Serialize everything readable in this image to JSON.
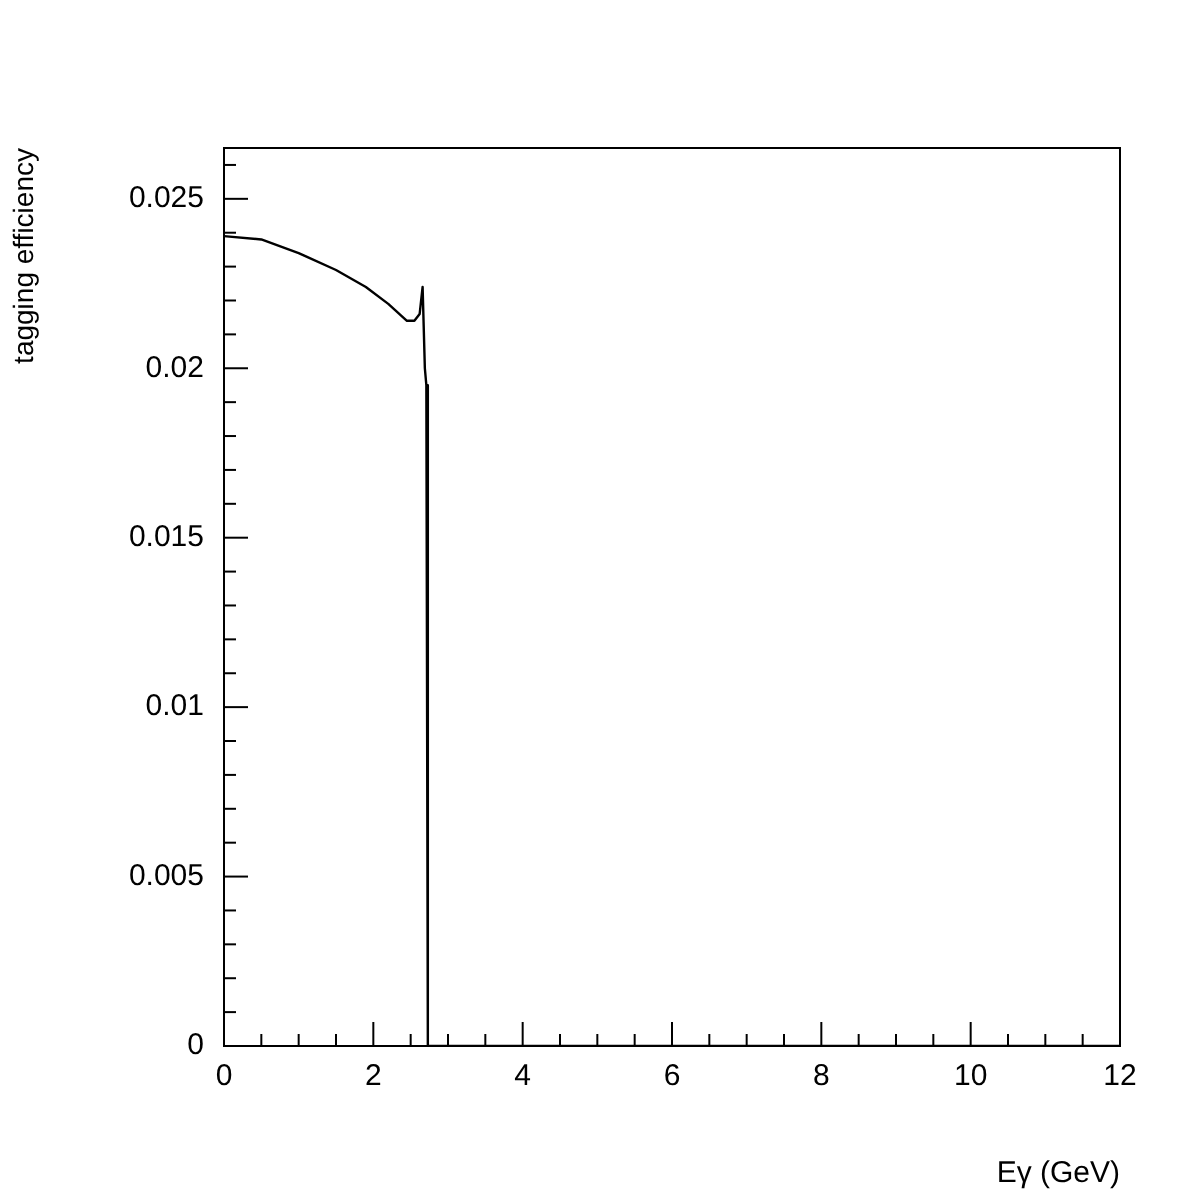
{
  "chart_data": {
    "type": "line",
    "xlabel": "Eγ (GeV)",
    "ylabel": "tagging efficiency",
    "x": [
      0,
      0.5,
      1.0,
      1.5,
      1.9,
      2.2,
      2.45,
      2.55,
      2.62,
      2.66,
      2.69,
      2.71,
      2.73,
      12
    ],
    "series": [
      {
        "color": "#000000",
        "values": [
          0.0239,
          0.0238,
          0.0234,
          0.0229,
          0.0224,
          0.0219,
          0.0214,
          0.0214,
          0.0216,
          0.0224,
          0.02,
          0.0195,
          0,
          0
        ]
      }
    ],
    "xlim": [
      0,
      12
    ],
    "ylim": [
      0,
      0.0265
    ],
    "xticks": [
      0,
      {
        "value": 0.5,
        "label": null
      },
      {
        "value": 1,
        "label": null
      },
      {
        "value": 1.5,
        "label": null
      },
      2,
      {
        "value": 2.5,
        "label": null
      },
      {
        "value": 3,
        "label": null
      },
      {
        "value": 3.5,
        "label": null
      },
      4,
      {
        "value": 4.5,
        "label": null
      },
      {
        "value": 5,
        "label": null
      },
      {
        "value": 5.5,
        "label": null
      },
      6,
      {
        "value": 6.5,
        "label": null
      },
      {
        "value": 7,
        "label": null
      },
      {
        "value": 7.5,
        "label": null
      },
      8,
      {
        "value": 8.5,
        "label": null
      },
      {
        "value": 9,
        "label": null
      },
      {
        "value": 9.5,
        "label": null
      },
      10,
      {
        "value": 10.5,
        "label": null
      },
      {
        "value": 11,
        "label": null
      },
      {
        "value": 11.5,
        "label": null
      },
      12
    ],
    "yticks": [
      0,
      {
        "value": 0.001,
        "label": null
      },
      {
        "value": 0.002,
        "label": null
      },
      {
        "value": 0.003,
        "label": null
      },
      {
        "value": 0.004,
        "label": null
      },
      0.005,
      {
        "value": 0.006,
        "label": null
      },
      {
        "value": 0.007,
        "label": null
      },
      {
        "value": 0.008,
        "label": null
      },
      {
        "value": 0.009,
        "label": null
      },
      0.01,
      {
        "value": 0.011,
        "label": null
      },
      {
        "value": 0.012,
        "label": null
      },
      {
        "value": 0.013,
        "label": null
      },
      {
        "value": 0.014,
        "label": null
      },
      0.015,
      {
        "value": 0.016,
        "label": null
      },
      {
        "value": 0.017,
        "label": null
      },
      {
        "value": 0.018,
        "label": null
      },
      {
        "value": 0.019,
        "label": null
      },
      0.02,
      {
        "value": 0.021,
        "label": null
      },
      {
        "value": 0.022,
        "label": null
      },
      {
        "value": 0.023,
        "label": null
      },
      {
        "value": 0.024,
        "label": null
      },
      0.025,
      {
        "value": 0.026,
        "label": null
      }
    ],
    "grid": false,
    "legend": false,
    "marker": "none",
    "line_style": "solid"
  }
}
